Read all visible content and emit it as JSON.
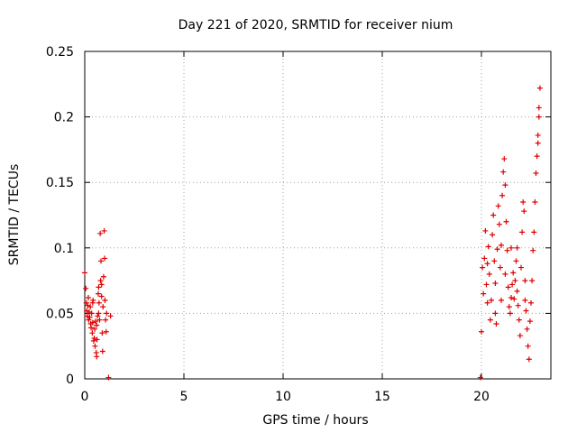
{
  "chart_data": {
    "type": "scatter",
    "title": "Day 221 of 2020, SRMTID for receiver nium",
    "xlabel": "GPS time / hours",
    "ylabel": "SRMTID / TECUs",
    "xlim": [
      0,
      23.5
    ],
    "ylim": [
      0,
      0.25
    ],
    "xticks": [
      0,
      5,
      10,
      15,
      20
    ],
    "xtick_labels": [
      "0",
      "5",
      "10",
      "15",
      "20"
    ],
    "yticks": [
      0,
      0.05,
      0.1,
      0.15,
      0.2,
      0.25
    ],
    "ytick_labels": [
      "0",
      "0.05",
      "0.1",
      "0.15",
      "0.2",
      "0.25"
    ],
    "grid": true,
    "marker": "+",
    "color": "#e00000",
    "series": [
      {
        "name": "SRMTID",
        "points": [
          [
            0.0,
            0.081
          ],
          [
            0.05,
            0.069
          ],
          [
            0.08,
            0.058
          ],
          [
            0.1,
            0.052
          ],
          [
            0.12,
            0.048
          ],
          [
            0.15,
            0.056
          ],
          [
            0.18,
            0.062
          ],
          [
            0.2,
            0.045
          ],
          [
            0.22,
            0.051
          ],
          [
            0.25,
            0.047
          ],
          [
            0.28,
            0.055
          ],
          [
            0.3,
            0.042
          ],
          [
            0.32,
            0.039
          ],
          [
            0.35,
            0.05
          ],
          [
            0.38,
            0.035
          ],
          [
            0.4,
            0.043
          ],
          [
            0.42,
            0.06
          ],
          [
            0.45,
            0.029
          ],
          [
            0.48,
            0.031
          ],
          [
            0.5,
            0.038
          ],
          [
            0.52,
            0.025
          ],
          [
            0.55,
            0.044
          ],
          [
            0.58,
            0.02
          ],
          [
            0.6,
            0.017
          ],
          [
            0.62,
            0.03
          ],
          [
            0.65,
            0.048
          ],
          [
            0.68,
            0.065
          ],
          [
            0.7,
            0.07
          ],
          [
            0.72,
            0.058
          ],
          [
            0.75,
            0.045
          ],
          [
            0.78,
            0.111
          ],
          [
            0.8,
            0.075
          ],
          [
            0.82,
            0.09
          ],
          [
            0.85,
            0.063
          ],
          [
            0.88,
            0.035
          ],
          [
            0.9,
            0.021
          ],
          [
            0.92,
            0.055
          ],
          [
            0.95,
            0.078
          ],
          [
            0.98,
            0.113
          ],
          [
            1.0,
            0.092
          ],
          [
            1.02,
            0.06
          ],
          [
            1.05,
            0.045
          ],
          [
            1.08,
            0.036
          ],
          [
            1.1,
            0.05
          ],
          [
            1.2,
            0.001
          ],
          [
            1.3,
            0.048
          ],
          [
            0.4,
            0.058
          ],
          [
            0.6,
            0.041
          ],
          [
            0.85,
            0.072
          ],
          [
            0.7,
            0.05
          ],
          [
            19.95,
            0.001
          ],
          [
            20.0,
            0.036
          ],
          [
            20.05,
            0.085
          ],
          [
            20.1,
            0.065
          ],
          [
            20.15,
            0.092
          ],
          [
            20.2,
            0.113
          ],
          [
            20.25,
            0.072
          ],
          [
            20.3,
            0.058
          ],
          [
            20.35,
            0.101
          ],
          [
            20.4,
            0.08
          ],
          [
            20.45,
            0.045
          ],
          [
            20.5,
            0.06
          ],
          [
            20.55,
            0.11
          ],
          [
            20.6,
            0.125
          ],
          [
            20.65,
            0.09
          ],
          [
            20.7,
            0.073
          ],
          [
            20.75,
            0.042
          ],
          [
            20.8,
            0.099
          ],
          [
            20.85,
            0.132
          ],
          [
            20.9,
            0.118
          ],
          [
            20.95,
            0.085
          ],
          [
            21.0,
            0.102
          ],
          [
            21.05,
            0.14
          ],
          [
            21.1,
            0.158
          ],
          [
            21.15,
            0.168
          ],
          [
            21.2,
            0.148
          ],
          [
            21.25,
            0.12
          ],
          [
            21.3,
            0.098
          ],
          [
            21.35,
            0.07
          ],
          [
            21.4,
            0.055
          ],
          [
            21.45,
            0.05
          ],
          [
            21.5,
            0.062
          ],
          [
            21.55,
            0.072
          ],
          [
            21.6,
            0.081
          ],
          [
            21.65,
            0.061
          ],
          [
            21.7,
            0.075
          ],
          [
            21.75,
            0.09
          ],
          [
            21.8,
            0.067
          ],
          [
            21.85,
            0.056
          ],
          [
            21.9,
            0.045
          ],
          [
            21.95,
            0.033
          ],
          [
            22.0,
            0.085
          ],
          [
            22.05,
            0.112
          ],
          [
            22.1,
            0.135
          ],
          [
            22.15,
            0.128
          ],
          [
            22.2,
            0.075
          ],
          [
            22.25,
            0.052
          ],
          [
            22.3,
            0.038
          ],
          [
            22.35,
            0.025
          ],
          [
            22.4,
            0.015
          ],
          [
            22.45,
            0.044
          ],
          [
            22.5,
            0.058
          ],
          [
            22.55,
            0.075
          ],
          [
            22.6,
            0.098
          ],
          [
            22.65,
            0.112
          ],
          [
            22.7,
            0.135
          ],
          [
            22.75,
            0.157
          ],
          [
            22.8,
            0.17
          ],
          [
            22.85,
            0.18
          ],
          [
            22.9,
            0.2
          ],
          [
            22.95,
            0.222
          ],
          [
            22.85,
            0.186
          ],
          [
            22.9,
            0.207
          ],
          [
            21.0,
            0.06
          ],
          [
            21.5,
            0.1
          ],
          [
            20.3,
            0.088
          ],
          [
            21.8,
            0.1
          ],
          [
            22.2,
            0.06
          ],
          [
            20.7,
            0.05
          ],
          [
            21.2,
            0.08
          ]
        ]
      }
    ]
  }
}
